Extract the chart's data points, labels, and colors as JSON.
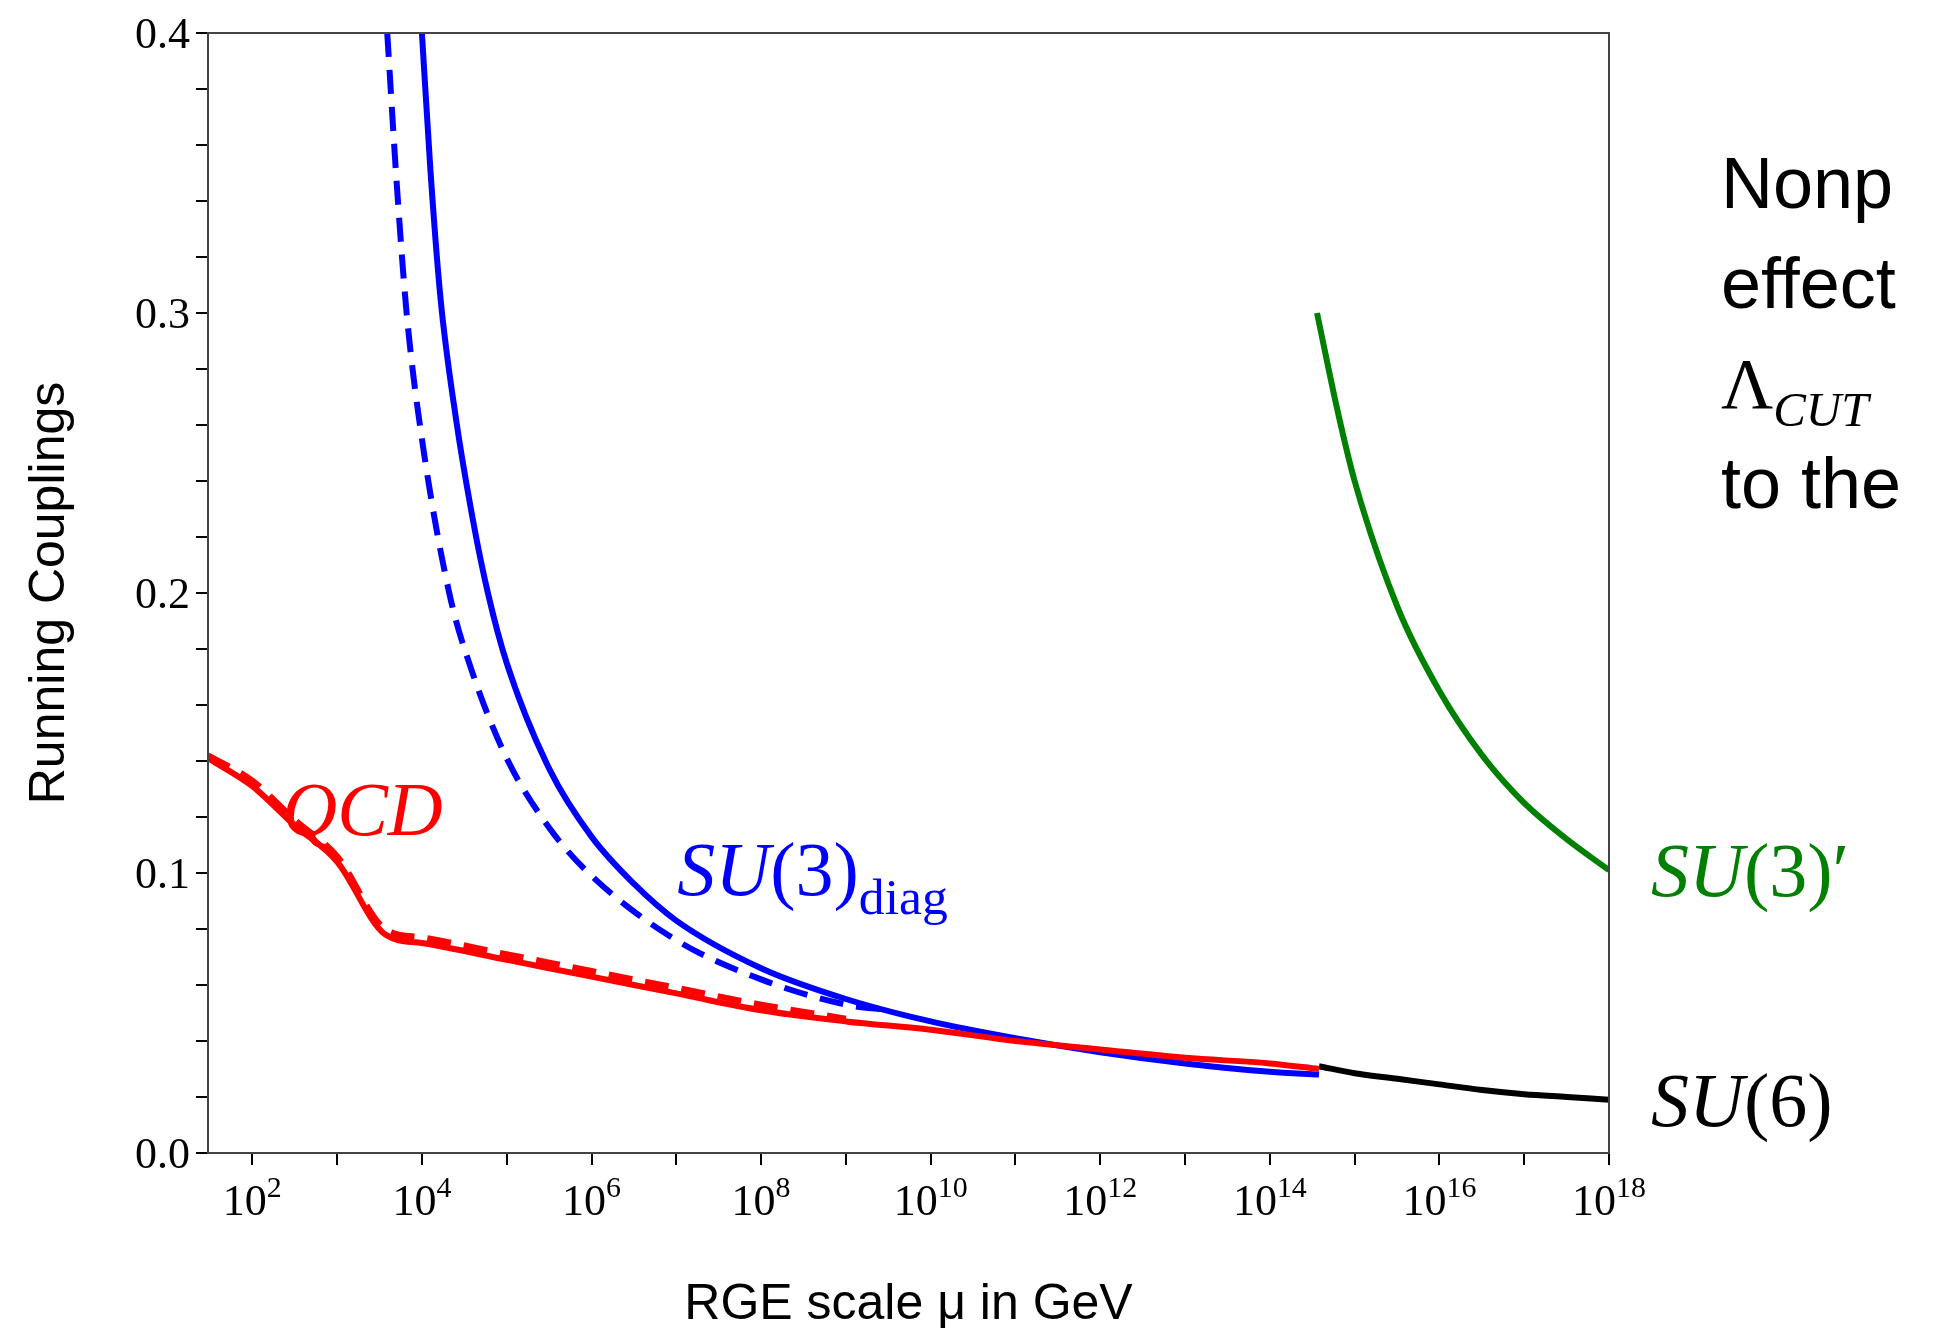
{
  "chart_data": {
    "type": "line",
    "xlabel": "RGE scale μ in GeV",
    "ylabel": "Running Couplings",
    "log": "x",
    "xlim": [
      30,
      1e+18
    ],
    "ylim": [
      0,
      0.4
    ],
    "xticks": [
      {
        "value": 100,
        "label": "10$^{2}$"
      },
      {
        "value": 1000,
        "label": null
      },
      {
        "value": 10000,
        "label": "10$^{4}$"
      },
      {
        "value": 100000.0,
        "label": null
      },
      {
        "value": 1000000.0,
        "label": "10$^{6}$"
      },
      {
        "value": 10000000.0,
        "label": null
      },
      {
        "value": 100000000.0,
        "label": "10$^{8}$"
      },
      {
        "value": 1000000000.0,
        "label": null
      },
      {
        "value": 10000000000.0,
        "label": "10$^{10}$"
      },
      {
        "value": 100000000000.0,
        "label": null
      },
      {
        "value": 1000000000000.0,
        "label": "10$^{12}$"
      },
      {
        "value": 10000000000000.0,
        "label": null
      },
      {
        "value": 100000000000000.0,
        "label": "10$^{14}$"
      },
      {
        "value": 1000000000000000.0,
        "label": null
      },
      {
        "value": 1e+16,
        "label": "10$^{16}$"
      },
      {
        "value": 1e+17,
        "label": null
      },
      {
        "value": 1e+18,
        "label": "10$^{18}$"
      }
    ],
    "yticks": [
      {
        "value": 0,
        "label": "0.0"
      },
      {
        "value": 0.02,
        "label": null
      },
      {
        "value": 0.04,
        "label": null
      },
      {
        "value": 0.06,
        "label": null
      },
      {
        "value": 0.08,
        "label": null
      },
      0.1,
      {
        "value": 0.12,
        "label": null
      },
      {
        "value": 0.14,
        "label": null
      },
      {
        "value": 0.16,
        "label": null
      },
      {
        "value": 0.18,
        "label": null
      },
      0.2,
      {
        "value": 0.22,
        "label": null
      },
      {
        "value": 0.24,
        "label": null
      },
      {
        "value": 0.26,
        "label": null
      },
      {
        "value": 0.28,
        "label": null
      },
      0.3,
      {
        "value": 0.32,
        "label": null
      },
      {
        "value": 0.34,
        "label": null
      },
      {
        "value": 0.36,
        "label": null
      },
      {
        "value": 0.38,
        "label": null
      },
      0.4
    ],
    "legend": false,
    "marker": "none",
    "series": [
      {
        "name": "QCD",
        "color": "#ff0000",
        "line_style": "solid",
        "x": [
          30,
          100,
          316,
          1000,
          3700,
          10000,
          100000.0,
          1000000.0,
          10000000.0,
          100000000.0,
          1000000000.0,
          10000000000.0,
          100000000000.0,
          1000000000000.0,
          10000000000000.0,
          100000000000000.0,
          380000000000000.0
        ],
        "values": [
          0.141,
          0.131,
          0.117,
          0.104,
          0.078,
          0.075,
          0.069,
          0.063,
          0.057,
          0.051,
          0.047,
          0.044,
          0.04,
          0.037,
          0.034,
          0.032,
          0.03
        ]
      },
      {
        "color": "#ff0000",
        "line_style": "dashed",
        "x": [
          30,
          100,
          316,
          1000,
          3700,
          10000,
          100000.0,
          1000000.0,
          10000000.0,
          100000000.0,
          1000000000.0
        ],
        "values": [
          0.142,
          0.133,
          0.119,
          0.106,
          0.08,
          0.077,
          0.071,
          0.065,
          0.059,
          0.053,
          0.048
        ]
      },
      {
        "name": "SU(3)$_{diag}$",
        "color": "#0000ff",
        "line_style": "solid",
        "x": [
          10000,
          12600,
          16600,
          25000,
          40000,
          60000,
          100000.0,
          320000.0,
          1000000.0,
          3200000.0,
          10000000.0,
          100000000.0,
          1000000000.0,
          10000000000.0,
          100000000000.0,
          1000000000000.0,
          10000000000000.0,
          100000000000000.0,
          380000000000000.0
        ],
        "values": [
          0.4,
          0.351,
          0.305,
          0.263,
          0.226,
          0.2,
          0.175,
          0.137,
          0.113,
          0.096,
          0.083,
          0.066,
          0.055,
          0.047,
          0.041,
          0.036,
          0.032,
          0.029,
          0.028
        ]
      },
      {
        "color": "#0000ff",
        "line_style": "dashed",
        "x": [
          3900,
          5000,
          6600,
          10000,
          21000,
          40000,
          100000.0,
          320000.0,
          1000000.0,
          10000000.0,
          100000000.0,
          1000000000.0,
          3200000000.0
        ],
        "values": [
          0.4,
          0.348,
          0.3,
          0.255,
          0.2,
          0.171,
          0.141,
          0.116,
          0.099,
          0.076,
          0.062,
          0.053,
          0.051
        ]
      },
      {
        "name": "SU(3)′",
        "color": "#008000",
        "line_style": "solid",
        "x": [
          360000000000000.0,
          630000000000000.0,
          1000000000000000.0,
          3200000000000000.0,
          1e+16,
          3.2e+16,
          1e+17,
          3.2e+17,
          1e+18
        ],
        "values": [
          0.3,
          0.265,
          0.24,
          0.195,
          0.165,
          0.142,
          0.125,
          0.112,
          0.101
        ]
      },
      {
        "name": "SU(6)",
        "color": "#000000",
        "line_style": "solid",
        "x": [
          380000000000000.0,
          1000000000000000.0,
          3200000000000000.0,
          1e+16,
          3.2e+16,
          1e+17,
          3.2e+17,
          1e+18
        ],
        "values": [
          0.031,
          0.0285,
          0.0265,
          0.0245,
          0.0225,
          0.021,
          0.02,
          0.019
        ]
      }
    ],
    "annotations": [
      "Nonp",
      "effect",
      "Λ$_{CUT}$",
      "to the"
    ]
  }
}
